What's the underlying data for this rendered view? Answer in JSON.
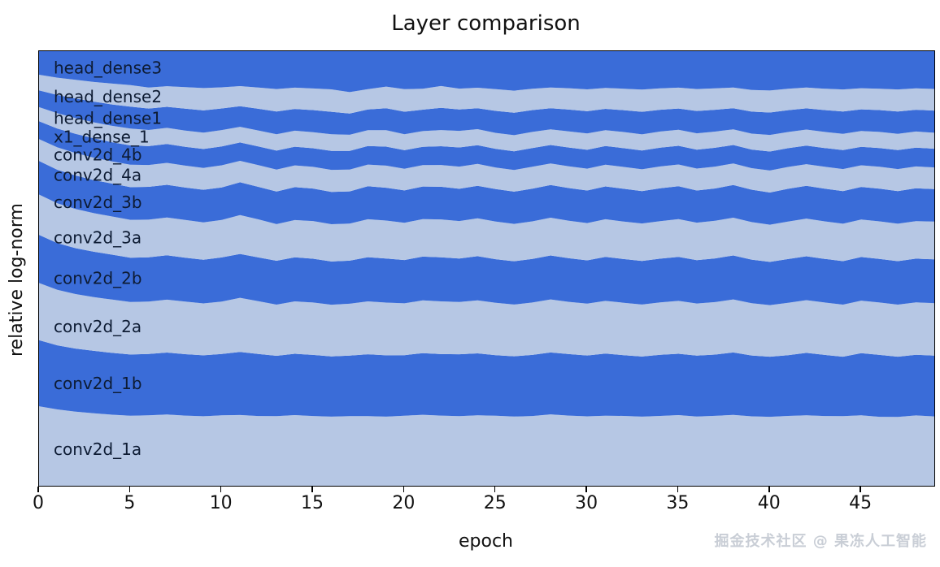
{
  "watermark": "掘金技术社区 @ 果冻人工智能",
  "chart_data": {
    "type": "area",
    "variant": "stacked-normalized-streamgraph",
    "title": "Layer comparison",
    "xlabel": "epoch",
    "ylabel": "relative log-norm",
    "x_range": [
      0,
      49
    ],
    "xticks": [
      0,
      5,
      10,
      15,
      20,
      25,
      30,
      35,
      40,
      45
    ],
    "grid": false,
    "legend_position": "inline-labels",
    "colors": {
      "band_light": "#b6c7e4",
      "band_dark": "#3a6cd8",
      "label_text": "#0d1b33",
      "axis": "#000000"
    },
    "series": [
      {
        "name": "conv2d_1a",
        "shade": "light",
        "values": [
          14.2,
          15.0,
          15.5,
          15.8,
          16.0,
          16.3,
          16.1,
          15.9,
          16.0,
          16.2,
          16.0,
          15.8,
          16.1,
          16.2,
          15.9,
          16.1,
          16.3,
          16.0,
          15.8,
          16.0,
          16.2,
          15.9,
          16.1,
          16.0,
          15.8,
          16.2,
          16.3,
          16.0,
          15.9,
          16.1,
          16.2,
          15.8,
          16.0,
          16.2,
          16.0,
          15.9,
          16.1,
          16.0,
          15.8,
          16.1,
          16.3,
          16.0,
          15.9,
          16.0,
          16.2,
          16.0,
          15.8,
          16.0,
          16.1,
          16.0
        ]
      },
      {
        "name": "conv2d_1b",
        "shade": "dark",
        "values": [
          11.8,
          12.6,
          13.2,
          13.6,
          13.9,
          14.2,
          14.0,
          13.8,
          14.0,
          14.2,
          13.9,
          14.1,
          14.3,
          14.0,
          13.8,
          14.1,
          14.2,
          13.9,
          14.0,
          14.2,
          14.0,
          13.8,
          14.1,
          14.2,
          13.9,
          14.0,
          14.2,
          14.0,
          13.8,
          14.1,
          14.2,
          14.0,
          13.9,
          14.1,
          14.0,
          13.8,
          14.2,
          14.0,
          13.9,
          14.1,
          14.2,
          13.9,
          14.1,
          14.0,
          13.8,
          14.1,
          14.2,
          14.0,
          13.9,
          14.0
        ]
      },
      {
        "name": "conv2d_2a",
        "shade": "light",
        "values": [
          10.2,
          10.9,
          11.4,
          11.7,
          12.0,
          12.2,
          12.0,
          11.8,
          12.0,
          12.1,
          11.9,
          12.1,
          12.2,
          11.9,
          11.8,
          12.1,
          12.2,
          11.9,
          12.0,
          12.2,
          12.0,
          11.8,
          12.1,
          12.0,
          11.9,
          12.1,
          12.2,
          12.0,
          11.8,
          12.0,
          12.1,
          11.9,
          12.0,
          12.2,
          12.0,
          11.9,
          12.1,
          12.0,
          11.8,
          12.1,
          12.2,
          12.0,
          11.9,
          12.0,
          12.1,
          11.9,
          12.0,
          12.1,
          12.0,
          12.1
        ]
      },
      {
        "name": "conv2d_2b",
        "shade": "dark",
        "values": [
          8.6,
          9.2,
          9.6,
          9.9,
          10.1,
          10.3,
          10.1,
          9.9,
          10.0,
          10.2,
          10.0,
          9.8,
          10.1,
          10.2,
          9.9,
          10.1,
          10.2,
          9.9,
          10.0,
          10.2,
          10.0,
          9.8,
          10.1,
          10.0,
          9.9,
          10.1,
          10.2,
          10.0,
          9.8,
          10.0,
          10.1,
          9.9,
          10.0,
          10.2,
          10.0,
          9.9,
          10.1,
          10.0,
          9.8,
          10.1,
          10.2,
          10.0,
          9.9,
          10.0,
          10.1,
          9.9,
          10.0,
          10.1,
          10.0,
          10.1
        ]
      },
      {
        "name": "conv2d_3a",
        "shade": "light",
        "values": [
          7.2,
          7.8,
          8.2,
          8.4,
          8.6,
          8.8,
          8.6,
          8.4,
          8.6,
          8.7,
          8.5,
          8.7,
          8.8,
          8.5,
          8.4,
          8.7,
          8.8,
          8.5,
          8.6,
          8.8,
          8.6,
          8.4,
          8.7,
          8.6,
          8.5,
          8.7,
          8.8,
          8.6,
          8.4,
          8.6,
          8.7,
          8.5,
          8.6,
          8.8,
          8.6,
          8.5,
          8.7,
          8.6,
          8.4,
          8.7,
          8.8,
          8.6,
          8.5,
          8.6,
          8.7,
          8.5,
          8.6,
          8.7,
          8.6,
          8.7
        ]
      },
      {
        "name": "conv2d_3b",
        "shade": "dark",
        "values": [
          6.0,
          6.6,
          7.0,
          7.2,
          7.4,
          7.6,
          7.5,
          7.3,
          7.4,
          7.6,
          7.4,
          7.3,
          7.5,
          7.6,
          7.4,
          7.5,
          7.6,
          7.4,
          7.5,
          7.6,
          7.5,
          7.3,
          7.5,
          7.4,
          7.3,
          7.5,
          7.6,
          7.5,
          7.3,
          7.5,
          7.6,
          7.4,
          7.5,
          7.6,
          7.5,
          7.4,
          7.5,
          7.4,
          7.3,
          7.5,
          7.6,
          7.5,
          7.4,
          7.5,
          7.6,
          7.4,
          7.5,
          7.6,
          7.5,
          7.5
        ]
      },
      {
        "name": "conv2d_4a",
        "shade": "light",
        "values": [
          3.9,
          4.4,
          4.7,
          4.9,
          5.0,
          5.2,
          5.0,
          4.9,
          5.0,
          5.1,
          5.0,
          4.8,
          5.0,
          5.1,
          4.9,
          5.0,
          5.2,
          5.0,
          4.9,
          5.1,
          5.0,
          4.8,
          5.0,
          5.1,
          4.9,
          5.0,
          5.1,
          5.0,
          4.8,
          5.0,
          5.1,
          4.9,
          5.0,
          5.1,
          5.0,
          4.9,
          5.1,
          5.0,
          4.8,
          5.0,
          5.2,
          5.0,
          4.9,
          5.0,
          5.1,
          4.9,
          5.0,
          5.1,
          5.0,
          5.0
        ]
      },
      {
        "name": "conv2d_4b",
        "shade": "dark",
        "values": [
          3.2,
          3.7,
          4.0,
          4.2,
          4.3,
          4.5,
          4.3,
          4.2,
          4.3,
          4.4,
          4.3,
          4.1,
          4.3,
          4.4,
          4.2,
          4.3,
          4.5,
          4.3,
          4.2,
          4.4,
          4.3,
          4.1,
          4.3,
          4.4,
          4.2,
          4.3,
          4.4,
          4.3,
          4.1,
          4.3,
          4.4,
          4.2,
          4.3,
          4.4,
          4.3,
          4.2,
          4.4,
          4.3,
          4.1,
          4.3,
          4.5,
          4.3,
          4.2,
          4.3,
          4.4,
          4.2,
          4.3,
          4.4,
          4.3,
          4.3
        ]
      },
      {
        "name": "x1_dense_1",
        "shade": "light",
        "values": [
          2.5,
          3.0,
          3.3,
          3.5,
          3.7,
          3.9,
          3.7,
          3.6,
          3.7,
          3.8,
          3.7,
          3.5,
          3.7,
          3.8,
          3.6,
          3.7,
          3.9,
          3.7,
          3.6,
          3.8,
          3.7,
          3.5,
          3.7,
          3.8,
          3.6,
          3.7,
          3.8,
          3.7,
          3.5,
          3.7,
          3.8,
          3.6,
          3.7,
          3.8,
          3.7,
          3.6,
          3.8,
          3.7,
          3.5,
          3.7,
          3.9,
          3.7,
          3.6,
          3.7,
          3.8,
          3.6,
          3.7,
          3.8,
          3.7,
          3.7
        ]
      },
      {
        "name": "head_dense1",
        "shade": "dark",
        "values": [
          3.0,
          3.6,
          4.1,
          4.5,
          4.8,
          5.1,
          4.9,
          4.7,
          5.0,
          5.2,
          4.9,
          4.6,
          5.0,
          5.3,
          4.9,
          5.1,
          5.3,
          4.9,
          4.7,
          5.1,
          5.2,
          4.8,
          5.1,
          4.9,
          4.7,
          5.1,
          5.3,
          5.0,
          4.7,
          5.0,
          5.2,
          4.8,
          5.0,
          5.3,
          5.0,
          4.8,
          5.2,
          5.0,
          4.7,
          5.1,
          5.3,
          5.0,
          4.8,
          5.0,
          5.2,
          4.9,
          5.0,
          5.2,
          5.0,
          5.1
        ]
      },
      {
        "name": "head_dense2",
        "shade": "light",
        "values": [
          2.8,
          3.4,
          3.9,
          4.3,
          4.7,
          5.0,
          4.8,
          4.6,
          4.9,
          5.2,
          4.8,
          4.5,
          4.9,
          5.2,
          4.8,
          5.0,
          5.3,
          4.9,
          4.6,
          5.0,
          5.2,
          4.7,
          5.0,
          4.8,
          4.6,
          5.0,
          5.2,
          4.9,
          4.6,
          4.9,
          5.1,
          4.7,
          4.9,
          5.2,
          4.9,
          4.7,
          5.1,
          4.9,
          4.6,
          5.0,
          5.2,
          4.9,
          4.7,
          4.9,
          5.1,
          4.8,
          4.9,
          5.1,
          4.9,
          5.0
        ]
      },
      {
        "name": "head_dense3",
        "shade": "dark",
        "values": [
          4.2,
          5.2,
          6.0,
          6.7,
          7.3,
          7.9,
          8.3,
          7.8,
          8.2,
          8.6,
          8.2,
          7.8,
          8.4,
          8.8,
          8.2,
          8.6,
          9.0,
          9.4,
          8.6,
          8.2,
          8.8,
          8.4,
          8.0,
          8.6,
          8.2,
          8.8,
          9.3,
          8.6,
          8.1,
          8.5,
          8.9,
          8.3,
          8.6,
          9.0,
          8.5,
          8.2,
          8.8,
          8.5,
          8.1,
          9.0,
          9.3,
          8.6,
          8.2,
          8.6,
          8.9,
          8.4,
          8.6,
          8.9,
          8.5,
          8.7
        ]
      }
    ]
  }
}
